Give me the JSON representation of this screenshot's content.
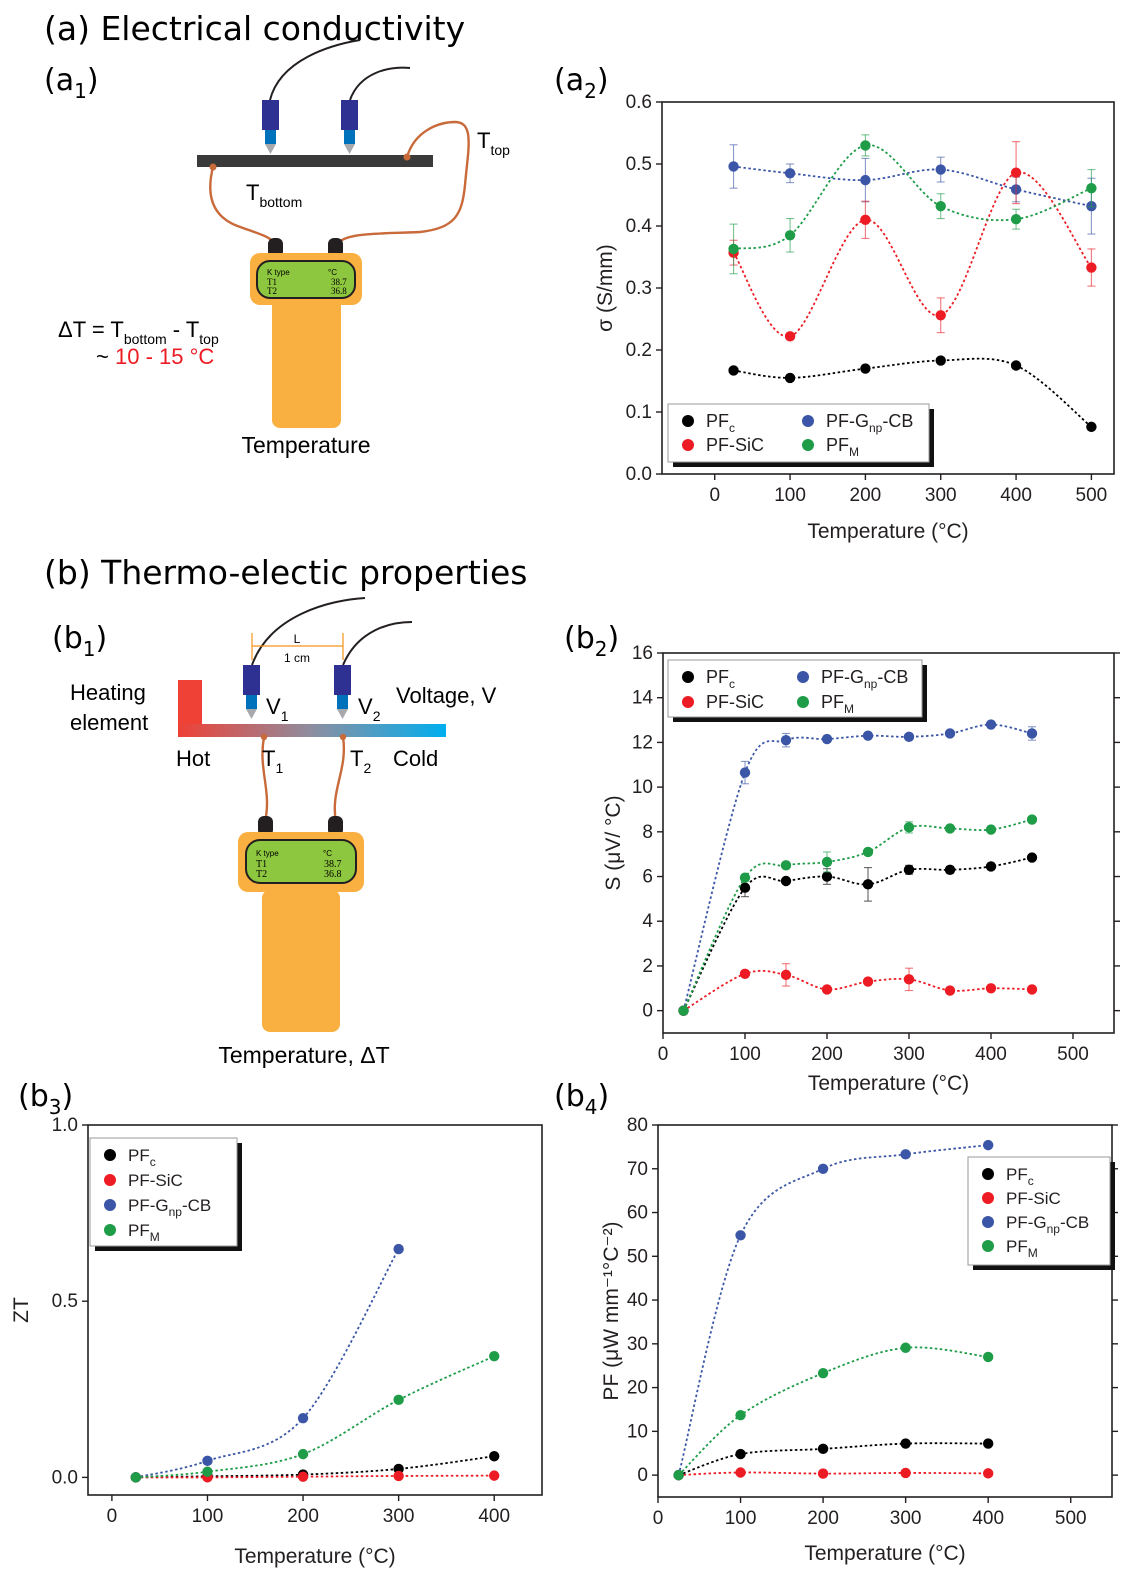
{
  "figure": {
    "section_a_title": "(a) Electrical conductivity",
    "section_b_title": "(b) Thermo-electic properties",
    "panel_labels": {
      "a1": [
        "(a",
        "1",
        ")"
      ],
      "a2": [
        "(a",
        "2",
        ")"
      ],
      "b1": [
        "(b",
        "1",
        ")"
      ],
      "b2": [
        "(b",
        "2",
        ")"
      ],
      "b3": [
        "(b",
        "3",
        ")"
      ],
      "b4": [
        "(b",
        "4",
        ")"
      ]
    }
  },
  "schematic_a": {
    "t_top": [
      "T",
      "top"
    ],
    "t_bottom": [
      "T",
      "bottom"
    ],
    "delta_eq": [
      "ΔT = T",
      "bottom",
      " - T",
      "top"
    ],
    "range_prefix": "~",
    "range_value": "10 - 15 °C",
    "meter_caption": "Temperature",
    "meter_display": {
      "type": "K type",
      "unit": "°C",
      "r1": "T1",
      "v1": "38.7",
      "r2": "T2",
      "v2": "36.8"
    }
  },
  "schematic_b": {
    "length_label": "L",
    "length_value": "1 cm",
    "heating_line1": "Heating",
    "heating_line2": "element",
    "hot": "Hot",
    "cold": "Cold",
    "v1": [
      "V",
      "1"
    ],
    "v2": [
      "V",
      "2"
    ],
    "t1": [
      "T",
      "1"
    ],
    "t2": [
      "T",
      "2"
    ],
    "voltage": "Voltage, V",
    "meter_caption": "Temperature, ΔT",
    "meter_display": {
      "type": "K type",
      "unit": "°C",
      "r1": "T1",
      "v1": "38.7",
      "r2": "T2",
      "v2": "36.8"
    }
  },
  "colors": {
    "PFc": "#000000",
    "PF-SiC": "#ed1c24",
    "PF-Gnp-CB": "#3b56a6",
    "PFM": "#1e9c48",
    "orange": "#f9b040",
    "wire": "#c86a3a",
    "lcd": "#8dc63f"
  },
  "chart_data": [
    {
      "id": "a2",
      "type": "scatter",
      "xlabel": "Temperature (°C)",
      "ylabel": "σ (S/mm)",
      "xlim": [
        -70,
        530
      ],
      "ylim": [
        0,
        0.6
      ],
      "xticks": [
        0,
        100,
        200,
        300,
        400,
        500
      ],
      "yticks": [
        0.0,
        0.1,
        0.2,
        0.3,
        0.4,
        0.5,
        0.6
      ],
      "ytick_labels": [
        "0.0",
        "0.1",
        "0.2",
        "0.3",
        "0.4",
        "0.5",
        "0.6"
      ],
      "legend": "bottom-left, two columns",
      "series": [
        {
          "key": "PFc",
          "name": [
            "PF",
            "c",
            ""
          ],
          "x": [
            25,
            100,
            200,
            300,
            400,
            500
          ],
          "y": [
            0.167,
            0.155,
            0.17,
            0.183,
            0.175,
            0.076
          ],
          "err": [
            0,
            0,
            0,
            0,
            0,
            0
          ]
        },
        {
          "key": "PF-Gnp-CB",
          "name": [
            "PF-G",
            "np",
            "-CB"
          ],
          "x": [
            25,
            100,
            200,
            300,
            400,
            500
          ],
          "y": [
            0.496,
            0.485,
            0.474,
            0.491,
            0.459,
            0.432
          ],
          "err": [
            0.035,
            0.015,
            0.035,
            0.02,
            0.02,
            0.045
          ]
        },
        {
          "key": "PF-SiC",
          "name": [
            "PF-SiC",
            "",
            ""
          ],
          "x": [
            25,
            100,
            200,
            300,
            400,
            500
          ],
          "y": [
            0.357,
            0.222,
            0.41,
            0.256,
            0.486,
            0.333
          ],
          "err": [
            0.02,
            0,
            0.03,
            0.028,
            0.05,
            0.03
          ]
        },
        {
          "key": "PFM",
          "name": [
            "PF",
            "M",
            ""
          ],
          "x": [
            25,
            100,
            200,
            300,
            400,
            500
          ],
          "y": [
            0.363,
            0.385,
            0.53,
            0.432,
            0.411,
            0.461
          ],
          "err": [
            0.04,
            0.027,
            0.017,
            0.02,
            0.016,
            0.03
          ]
        }
      ]
    },
    {
      "id": "b2",
      "type": "scatter",
      "xlabel": "Temperature (°C)",
      "ylabel": "S (μV/ °C)",
      "xlim": [
        0,
        550
      ],
      "ylim": [
        -1,
        16
      ],
      "xticks": [
        0,
        100,
        200,
        300,
        400,
        500
      ],
      "yticks": [
        0,
        2,
        4,
        6,
        8,
        10,
        12,
        14,
        16
      ],
      "ytick_labels": [
        "0",
        "2",
        "4",
        "6",
        "8",
        "10",
        "12",
        "14",
        "16"
      ],
      "legend": "top-left, two columns",
      "series": [
        {
          "key": "PFc",
          "name": [
            "PF",
            "c",
            ""
          ],
          "x": [
            25,
            100,
            150,
            200,
            250,
            300,
            350,
            400,
            450
          ],
          "y": [
            0,
            5.5,
            5.8,
            6.0,
            5.65,
            6.3,
            6.3,
            6.45,
            6.85
          ],
          "err": [
            0,
            0.4,
            0,
            0.35,
            0.75,
            0.2,
            0.15,
            0,
            0
          ]
        },
        {
          "key": "PF-Gnp-CB",
          "name": [
            "PF-G",
            "np",
            "-CB"
          ],
          "x": [
            25,
            100,
            150,
            200,
            250,
            300,
            350,
            400,
            450
          ],
          "y": [
            0,
            10.65,
            12.1,
            12.15,
            12.3,
            12.25,
            12.4,
            12.8,
            12.4
          ],
          "err": [
            0,
            0.5,
            0.3,
            0,
            0,
            0,
            0,
            0,
            0.3
          ]
        },
        {
          "key": "PF-SiC",
          "name": [
            "PF-SiC",
            "",
            ""
          ],
          "x": [
            25,
            100,
            150,
            200,
            250,
            300,
            350,
            400,
            450
          ],
          "y": [
            0,
            1.65,
            1.6,
            0.95,
            1.3,
            1.4,
            0.9,
            1.0,
            0.95
          ],
          "err": [
            0,
            0,
            0.5,
            0,
            0,
            0.5,
            0,
            0,
            0
          ]
        },
        {
          "key": "PFM",
          "name": [
            "PF",
            "M",
            ""
          ],
          "x": [
            25,
            100,
            150,
            200,
            250,
            300,
            350,
            400,
            450
          ],
          "y": [
            0,
            5.95,
            6.5,
            6.65,
            7.1,
            8.2,
            8.15,
            8.1,
            8.55
          ],
          "err": [
            0,
            0,
            0,
            0.45,
            0,
            0.25,
            0,
            0,
            0
          ]
        }
      ]
    },
    {
      "id": "b3",
      "type": "scatter",
      "xlabel": "Temperature (°C)",
      "ylabel": "ZT",
      "xlim": [
        -25,
        450
      ],
      "ylim": [
        -0.05,
        1.0
      ],
      "xticks": [
        0,
        100,
        200,
        300,
        400
      ],
      "yticks": [
        0.0,
        0.5,
        1.0
      ],
      "ytick_labels": [
        "0.0",
        "0.5",
        "1.0"
      ],
      "legend": "top-left",
      "series": [
        {
          "key": "PFc",
          "name": [
            "PF",
            "c",
            ""
          ],
          "x": [
            25,
            100,
            200,
            300,
            400
          ],
          "y": [
            0,
            0.003,
            0.008,
            0.024,
            0.06
          ],
          "err": [
            0,
            0,
            0,
            0,
            0
          ]
        },
        {
          "key": "PF-SiC",
          "name": [
            "PF-SiC",
            "",
            ""
          ],
          "x": [
            25,
            100,
            200,
            300,
            400
          ],
          "y": [
            0,
            0,
            0.002,
            0.004,
            0.005
          ],
          "err": [
            0,
            0,
            0,
            0,
            0
          ]
        },
        {
          "key": "PF-Gnp-CB",
          "name": [
            "PF-G",
            "np",
            "-CB"
          ],
          "x": [
            25,
            100,
            200,
            300
          ],
          "y": [
            0,
            0.047,
            0.168,
            0.648
          ],
          "err": [
            0,
            0,
            0,
            0
          ]
        },
        {
          "key": "PFM",
          "name": [
            "PF",
            "M",
            ""
          ],
          "x": [
            25,
            100,
            200,
            300,
            400
          ],
          "y": [
            0,
            0.016,
            0.066,
            0.22,
            0.344
          ],
          "err": [
            0,
            0,
            0,
            0,
            0
          ]
        }
      ]
    },
    {
      "id": "b4",
      "type": "scatter",
      "xlabel": "Temperature (°C)",
      "ylabel": "PF (μW mm⁻¹°C⁻²)",
      "xlim": [
        0,
        550
      ],
      "ylim": [
        -5,
        80
      ],
      "xticks": [
        0,
        100,
        200,
        300,
        400,
        500
      ],
      "yticks": [
        0,
        10,
        20,
        30,
        40,
        50,
        60,
        70,
        80
      ],
      "ytick_labels": [
        "0",
        "10",
        "20",
        "30",
        "40",
        "50",
        "60",
        "70",
        "80"
      ],
      "legend": "top-right",
      "series": [
        {
          "key": "PFc",
          "name": [
            "PF",
            "c",
            ""
          ],
          "x": [
            25,
            100,
            200,
            300,
            400
          ],
          "y": [
            0,
            4.8,
            6.0,
            7.2,
            7.2
          ],
          "err": [
            0,
            0,
            0,
            0,
            0
          ]
        },
        {
          "key": "PF-SiC",
          "name": [
            "PF-SiC",
            "",
            ""
          ],
          "x": [
            25,
            100,
            200,
            300,
            400
          ],
          "y": [
            0,
            0.6,
            0.35,
            0.5,
            0.4
          ],
          "err": [
            0,
            0,
            0,
            0,
            0
          ]
        },
        {
          "key": "PF-Gnp-CB",
          "name": [
            "PF-G",
            "np",
            "-CB"
          ],
          "x": [
            25,
            100,
            200,
            300,
            400
          ],
          "y": [
            0,
            54.8,
            70.0,
            73.3,
            75.4
          ],
          "err": [
            0,
            0,
            0,
            0,
            0
          ]
        },
        {
          "key": "PFM",
          "name": [
            "PF",
            "M",
            ""
          ],
          "x": [
            25,
            100,
            200,
            300,
            400
          ],
          "y": [
            0,
            13.7,
            23.3,
            29.1,
            27.0
          ],
          "err": [
            0,
            0,
            0,
            0,
            0
          ]
        }
      ]
    }
  ]
}
